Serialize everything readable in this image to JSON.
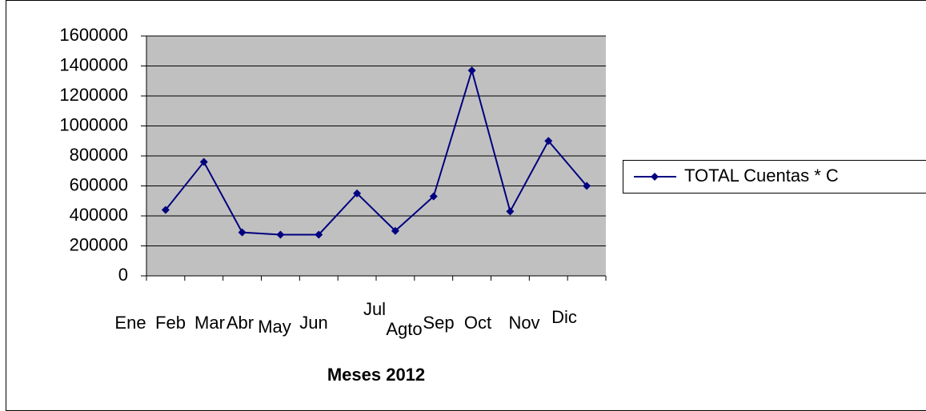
{
  "chart_data": {
    "type": "line",
    "x_label": "Meses 2012",
    "categories": [
      "Ene",
      "Feb",
      "Mar",
      "Abr",
      "May",
      "Jun",
      "Jul",
      "Agto",
      "Sep",
      "Oct",
      "Nov",
      "Dic"
    ],
    "series": [
      {
        "name": "TOTAL Cuentas * C",
        "color": "#000080",
        "values": [
          440000,
          760000,
          290000,
          275000,
          275000,
          550000,
          300000,
          530000,
          1370000,
          430000,
          900000,
          600000
        ]
      }
    ],
    "ylim": [
      0,
      1600000
    ],
    "yticks": [
      0,
      200000,
      400000,
      600000,
      800000,
      1000000,
      1200000,
      1400000,
      1600000
    ],
    "grid": true,
    "legend": "right"
  }
}
